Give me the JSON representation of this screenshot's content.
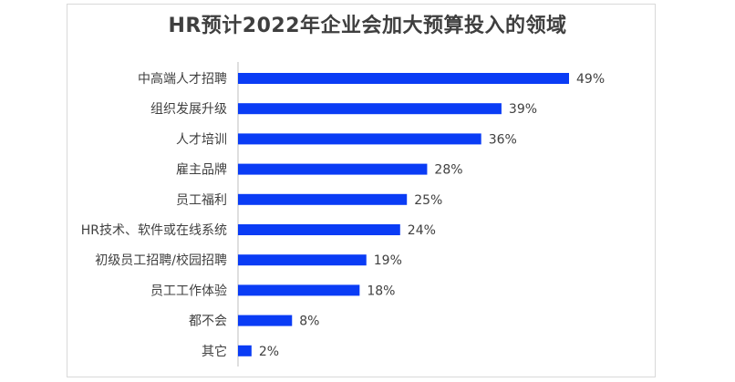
{
  "chart_data": {
    "type": "bar",
    "orientation": "horizontal",
    "title": "HR预计2022年企业会加大预算投入的领域",
    "categories": [
      "中高端人才招聘",
      "组织发展升级",
      "人才培训",
      "雇主品牌",
      "员工福利",
      "HR技术、软件或在线系统",
      "初级员工招聘/校园招聘",
      "员工工作体验",
      "都不会",
      "其它"
    ],
    "values": [
      49,
      39,
      36,
      28,
      25,
      24,
      19,
      18,
      8,
      2
    ],
    "value_labels": [
      "49%",
      "39%",
      "36%",
      "28%",
      "25%",
      "24%",
      "19%",
      "18%",
      "8%",
      "2%"
    ],
    "unit": "%",
    "xlabel": "",
    "ylabel": "",
    "xlim": [
      0,
      49
    ],
    "grid": false,
    "legend": "none",
    "bar_color": "#0a3cf5"
  }
}
